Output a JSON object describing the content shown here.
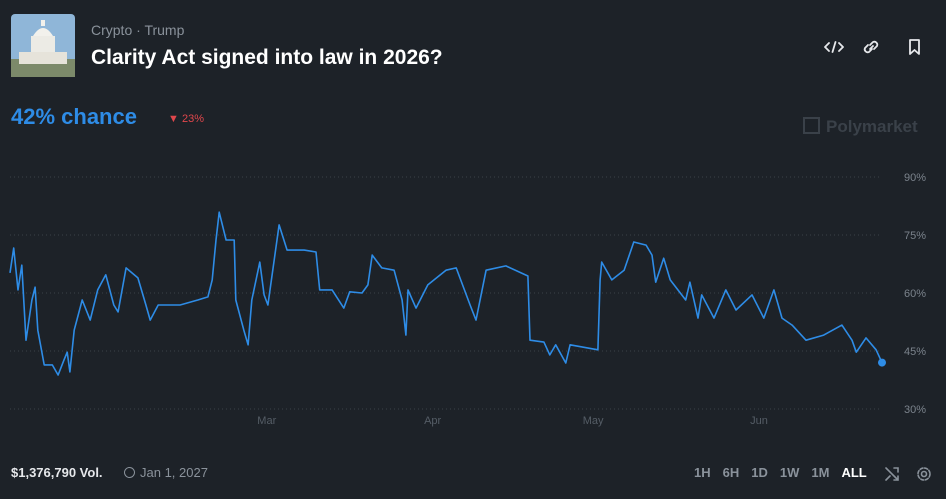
{
  "header": {
    "tags": [
      "Crypto",
      "Trump"
    ],
    "title": "Clarity Act signed into law in 2026?"
  },
  "probability": "42% chance",
  "change": "23%",
  "watermark": "Polymarket",
  "chart_data": {
    "type": "line",
    "x": [
      12,
      12.7,
      13.5,
      14.2,
      15.0,
      16.1,
      16.7,
      17.2,
      18.4,
      19.9,
      21.0,
      22.1,
      22.7,
      23.2,
      24.0,
      25.5,
      27.0,
      28.4,
      29.9,
      31.4,
      32.2,
      33.7,
      35.9,
      37.4,
      38.2,
      39.7,
      43.8,
      47.1,
      49.0,
      49.8,
      50.5,
      51.1,
      52.4,
      53.9,
      54.2,
      55.7,
      56.5,
      57.2,
      58.7,
      59.5,
      60.2,
      62.3,
      63.8,
      67.0,
      69.2,
      69.9,
      72.2,
      74.4,
      75.5,
      77.8,
      78.9,
      79.7,
      81.5,
      83.8,
      85.3,
      86.0,
      86.4,
      87.9,
      90.1,
      93.5,
      95.4,
      98.0,
      99.1,
      101.0,
      104.7,
      108.8,
      109.2,
      111.8,
      112.9,
      114.0,
      115.9,
      116.7,
      121.9,
      122.3,
      122.6,
      124.5,
      126.8,
      128.6,
      130.9,
      132.0,
      132.7,
      134.2,
      135.4,
      138.3,
      139.1,
      140.6,
      141.3,
      143.6,
      145.8,
      147.7,
      150.7,
      152.9,
      154.8,
      156.3,
      158.2,
      160.8,
      164.1,
      167.5,
      169.4,
      170.2,
      172.0,
      173.9,
      175.0
    ],
    "series": [
      {
        "color": "#2e8ce6",
        "values": [
          65.2,
          71.6,
          60.8,
          67.2,
          47.8,
          58.2,
          61.5,
          50.4,
          41.4,
          41.4,
          38.8,
          42.7,
          44.7,
          39.6,
          50.4,
          58.2,
          53.0,
          60.8,
          64.7,
          56.9,
          55.1,
          66.5,
          63.9,
          56.9,
          53.0,
          56.9,
          56.9,
          58.2,
          59.0,
          63.4,
          73.7,
          80.9,
          73.7,
          73.7,
          58.2,
          50.4,
          46.6,
          58.2,
          68.0,
          59.5,
          56.9,
          77.6,
          71.1,
          71.1,
          70.6,
          60.8,
          60.8,
          56.1,
          60.3,
          60.0,
          62.1,
          69.8,
          66.5,
          65.9,
          58.2,
          49.1,
          60.8,
          56.1,
          62.1,
          65.9,
          66.5,
          56.9,
          53.0,
          65.9,
          67.0,
          64.4,
          47.8,
          47.3,
          44.0,
          46.6,
          41.9,
          46.6,
          45.3,
          63.4,
          68.0,
          63.4,
          65.9,
          73.2,
          72.4,
          69.8,
          62.8,
          69.0,
          63.4,
          58.2,
          62.8,
          53.5,
          59.5,
          53.5,
          60.8,
          55.6,
          59.5,
          53.5,
          60.8,
          53.5,
          51.7,
          47.8,
          49.1,
          51.7,
          47.8,
          44.7,
          48.4,
          45.3,
          42
        ]
      }
    ],
    "xlim": [
      12,
      175
    ],
    "xticks": [
      {
        "value": 60,
        "label": "Mar"
      },
      {
        "value": 91,
        "label": "Apr"
      },
      {
        "value": 121,
        "label": "May"
      },
      {
        "value": 152,
        "label": "Jun"
      }
    ],
    "ylim": [
      30,
      90
    ],
    "yticks": [
      {
        "value": 30,
        "label": "30%"
      },
      {
        "value": 45,
        "label": "45%"
      },
      {
        "value": 60,
        "label": "60%"
      },
      {
        "value": 75,
        "label": "75%"
      },
      {
        "value": 90,
        "label": "90%"
      }
    ],
    "grid": true
  },
  "footer": {
    "volume": "$1,376,790 Vol.",
    "end_date": "Jan 1, 2027",
    "ranges": [
      "1H",
      "6H",
      "1D",
      "1W",
      "1M",
      "ALL"
    ],
    "active_range": "ALL"
  }
}
